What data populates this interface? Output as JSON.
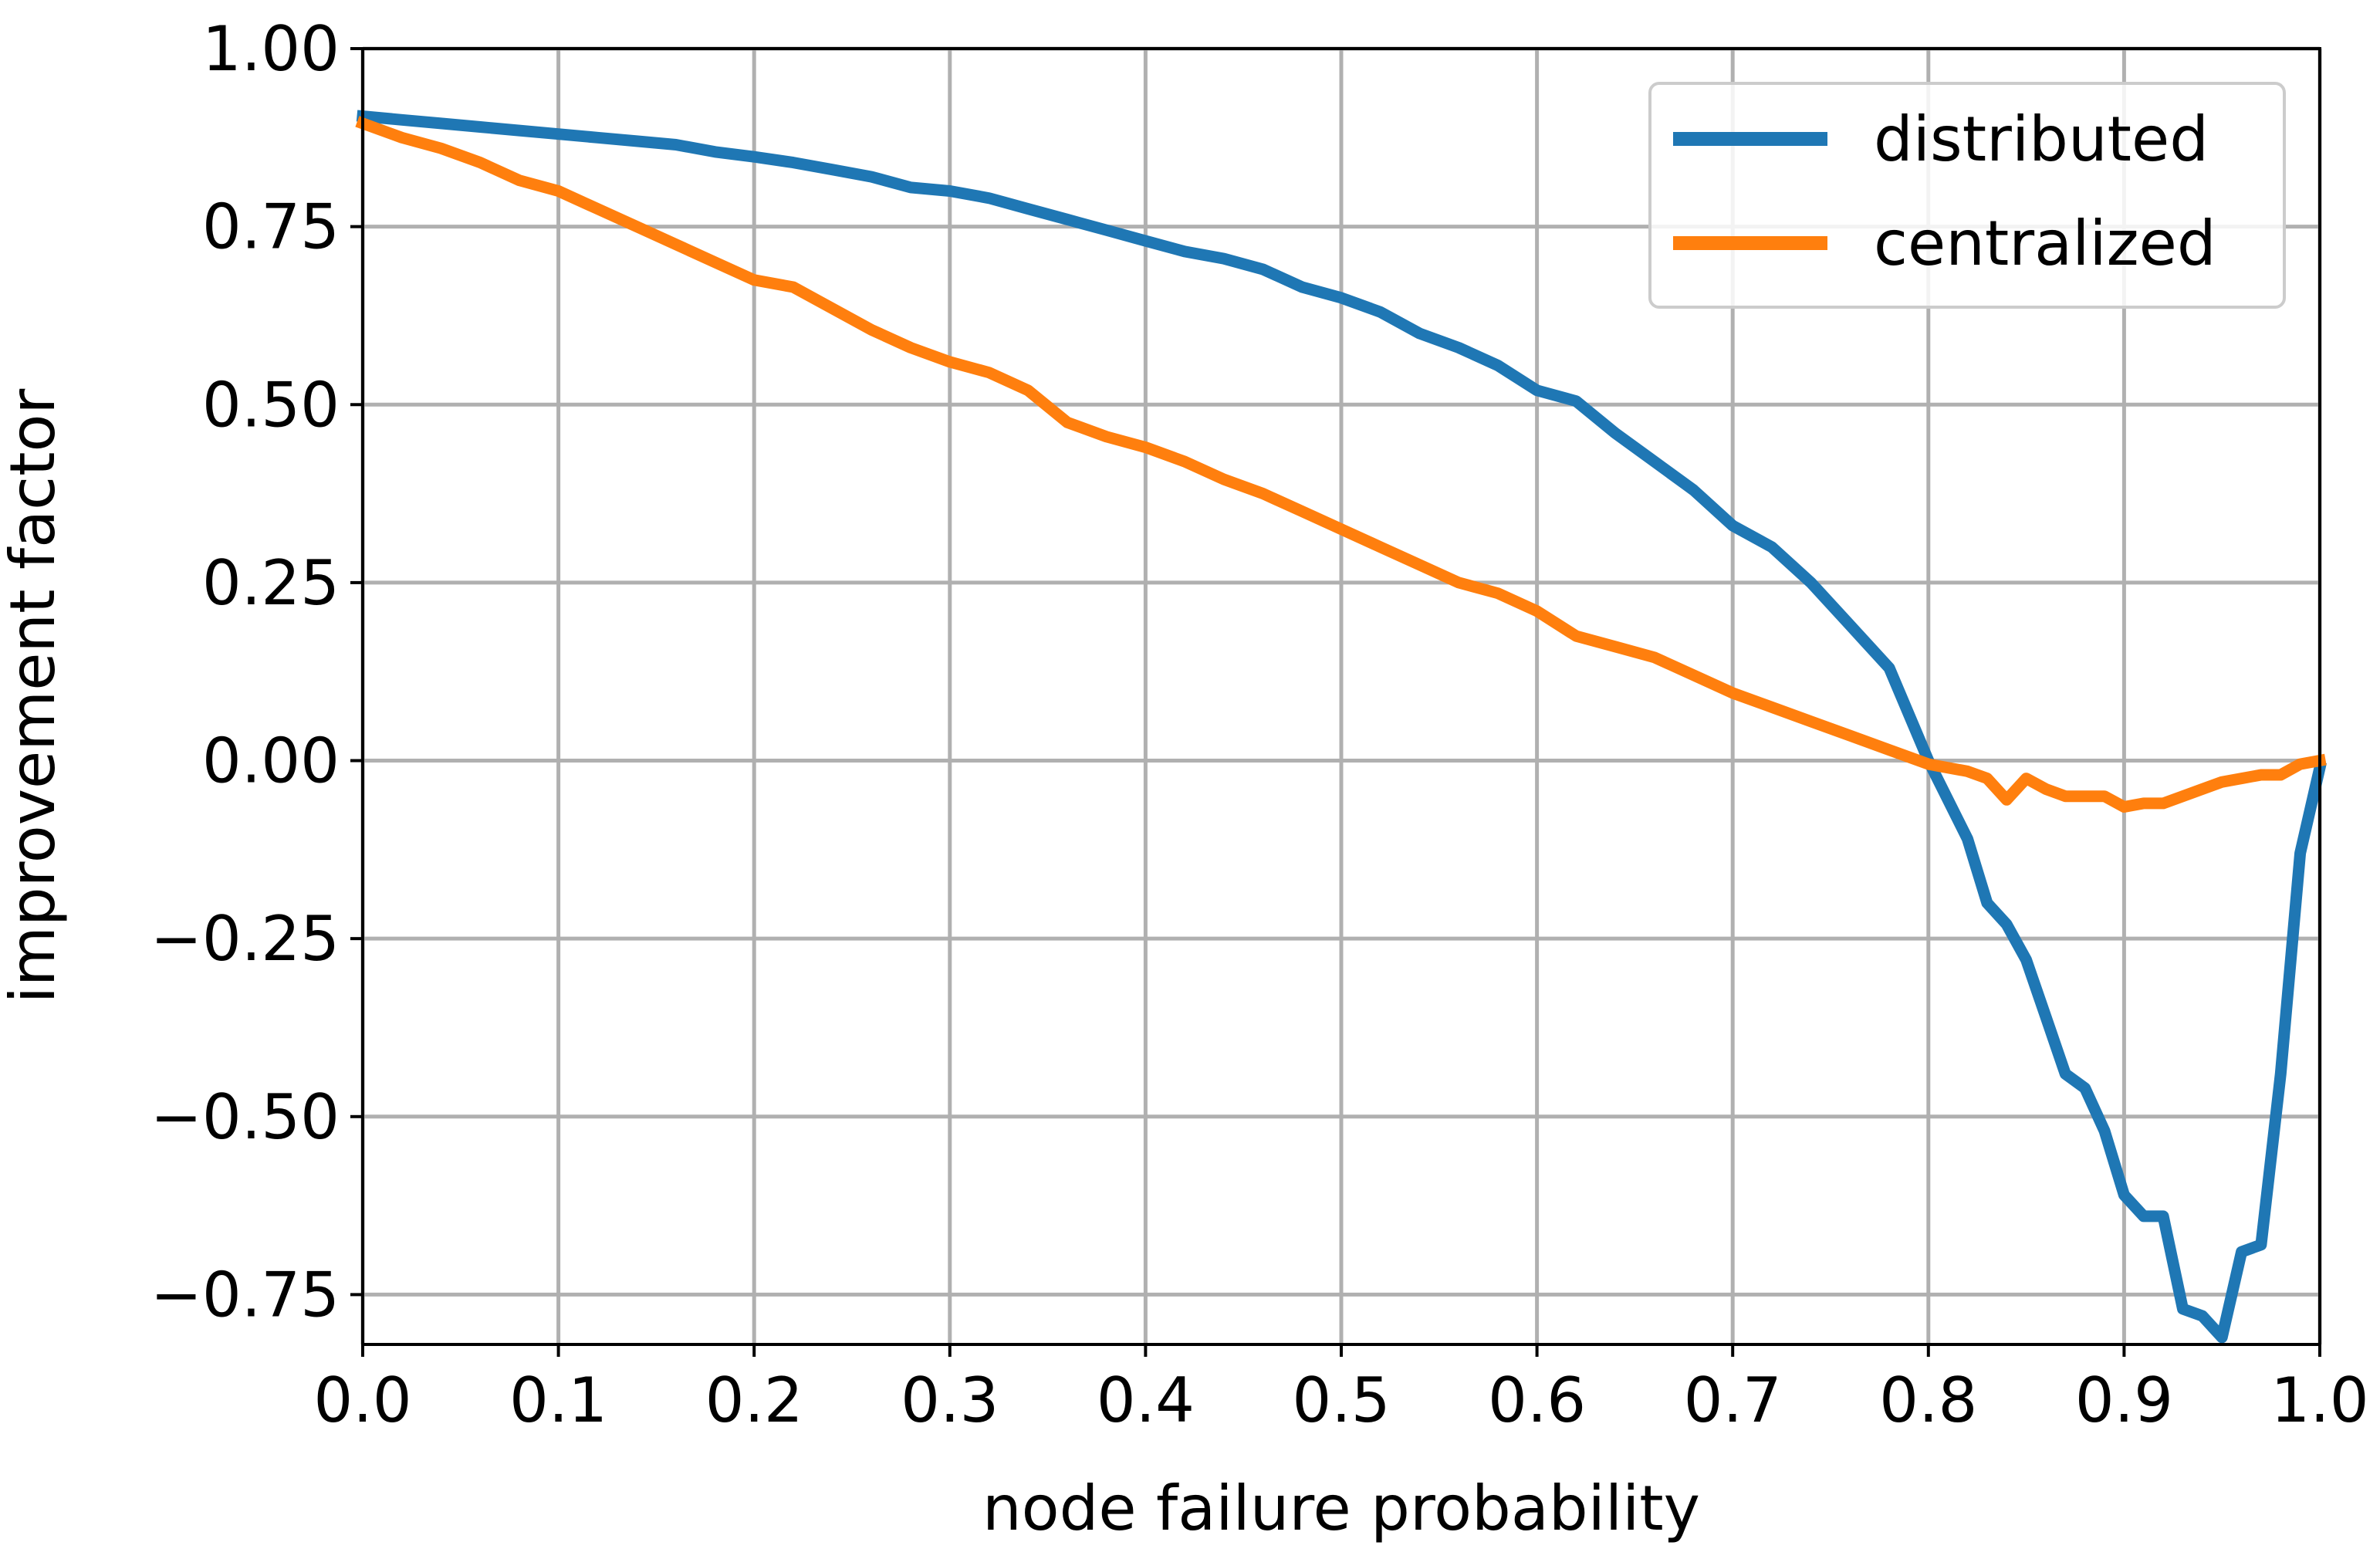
{
  "chart_data": {
    "type": "line",
    "title": "",
    "xlabel": "node failure probability",
    "ylabel": "improvement factor",
    "xlim": [
      0.0,
      1.0
    ],
    "ylim": [
      -0.82,
      1.0
    ],
    "grid": true,
    "legend_position": "top-right",
    "x_ticks": [
      0.0,
      0.1,
      0.2,
      0.3,
      0.4,
      0.5,
      0.6,
      0.7,
      0.8,
      0.9,
      1.0
    ],
    "x_tick_labels": [
      "0.0",
      "0.1",
      "0.2",
      "0.3",
      "0.4",
      "0.5",
      "0.6",
      "0.7",
      "0.8",
      "0.9",
      "1.0"
    ],
    "y_ticks": [
      1.0,
      0.75,
      0.5,
      0.25,
      0.0,
      -0.25,
      -0.5,
      -0.75
    ],
    "y_tick_labels": [
      "1.00",
      "0.75",
      "0.50",
      "0.25",
      "0.00",
      "−0.25",
      "−0.50",
      "−0.75"
    ],
    "x": [
      0.0,
      0.02,
      0.04,
      0.06,
      0.08,
      0.1,
      0.12,
      0.14,
      0.16,
      0.18,
      0.2,
      0.22,
      0.24,
      0.26,
      0.28,
      0.3,
      0.32,
      0.34,
      0.36,
      0.38,
      0.4,
      0.42,
      0.44,
      0.46,
      0.48,
      0.5,
      0.52,
      0.54,
      0.56,
      0.58,
      0.6,
      0.62,
      0.64,
      0.66,
      0.68,
      0.7,
      0.72,
      0.74,
      0.76,
      0.78,
      0.8,
      0.82,
      0.83,
      0.84,
      0.85,
      0.86,
      0.87,
      0.88,
      0.89,
      0.9,
      0.91,
      0.92,
      0.93,
      0.94,
      0.95,
      0.96,
      0.97,
      0.98,
      0.99,
      1.0
    ],
    "series": [
      {
        "name": "distributed",
        "color": "#1f77b4",
        "values": [
          0.905,
          0.9,
          0.895,
          0.89,
          0.885,
          0.88,
          0.875,
          0.87,
          0.865,
          0.855,
          0.848,
          0.84,
          0.83,
          0.82,
          0.805,
          0.8,
          0.79,
          0.775,
          0.76,
          0.745,
          0.73,
          0.715,
          0.705,
          0.69,
          0.665,
          0.65,
          0.63,
          0.6,
          0.58,
          0.555,
          0.52,
          0.505,
          0.46,
          0.42,
          0.38,
          0.33,
          0.3,
          0.25,
          0.19,
          0.13,
          0.0,
          -0.11,
          -0.2,
          -0.23,
          -0.28,
          -0.36,
          -0.44,
          -0.46,
          -0.52,
          -0.61,
          -0.64,
          -0.64,
          -0.77,
          -0.78,
          -0.81,
          -0.69,
          -0.68,
          -0.44,
          -0.13,
          -0.01
        ]
      },
      {
        "name": "centralized",
        "color": "#ff7f0e",
        "values": [
          0.895,
          0.875,
          0.86,
          0.84,
          0.815,
          0.8,
          0.775,
          0.75,
          0.725,
          0.7,
          0.675,
          0.665,
          0.635,
          0.605,
          0.58,
          0.56,
          0.545,
          0.52,
          0.475,
          0.455,
          0.44,
          0.42,
          0.395,
          0.375,
          0.35,
          0.325,
          0.3,
          0.275,
          0.25,
          0.235,
          0.21,
          0.175,
          0.16,
          0.145,
          0.12,
          0.095,
          0.075,
          0.055,
          0.035,
          0.015,
          -0.005,
          -0.015,
          -0.025,
          -0.055,
          -0.025,
          -0.04,
          -0.05,
          -0.05,
          -0.05,
          -0.065,
          -0.06,
          -0.06,
          -0.05,
          -0.04,
          -0.03,
          -0.025,
          -0.02,
          -0.02,
          -0.005,
          0.0
        ]
      }
    ]
  }
}
